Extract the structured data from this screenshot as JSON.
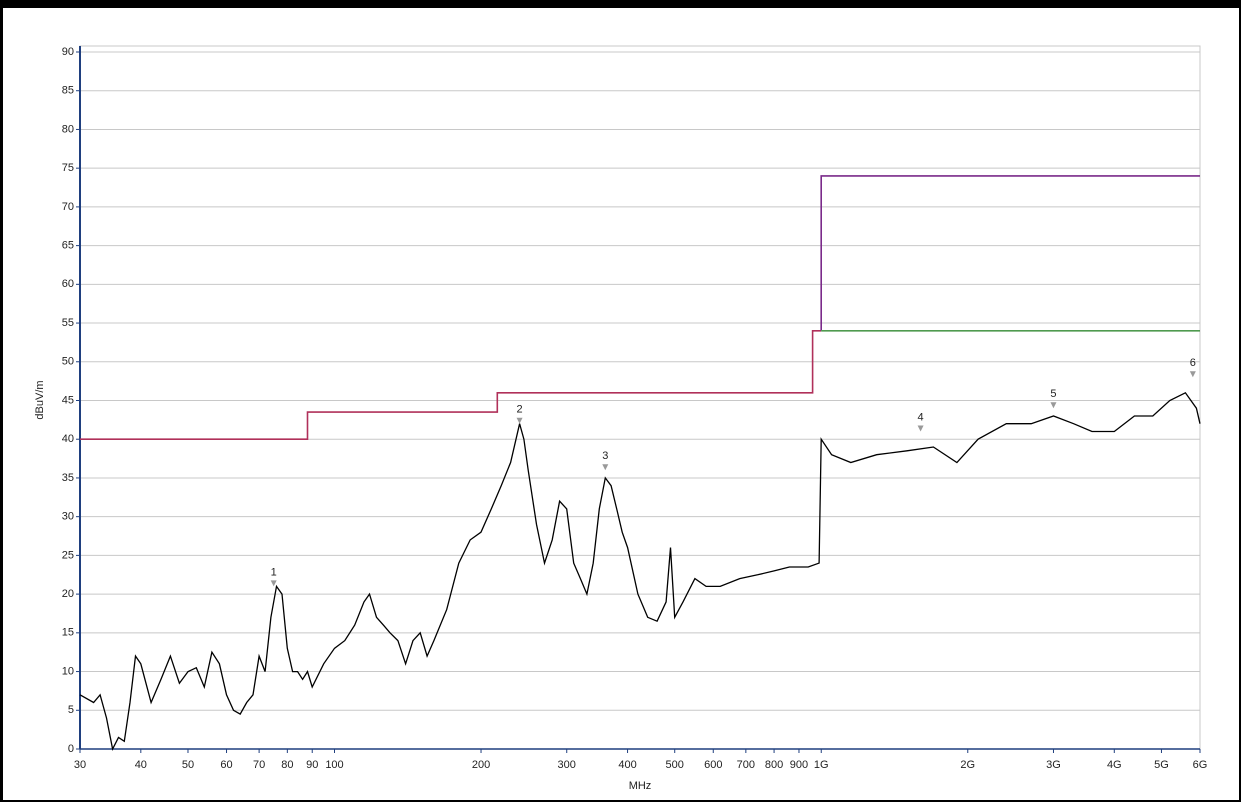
{
  "chart_data": {
    "type": "line",
    "y_label": "dBuV/m",
    "x_label": "MHz",
    "log_x": true,
    "xlim": [
      30,
      6000
    ],
    "xticks": [
      30,
      40,
      50,
      60,
      70,
      80,
      90,
      100,
      200,
      300,
      400,
      500,
      600,
      700,
      800,
      900,
      {
        "value": 1000,
        "label": "1G"
      },
      {
        "value": 2000,
        "label": "2G"
      },
      {
        "value": 3000,
        "label": "3G"
      },
      {
        "value": 4000,
        "label": "4G"
      },
      {
        "value": 5000,
        "label": "5G"
      },
      {
        "value": 6000,
        "label": "6G"
      }
    ],
    "ylim": [
      0,
      90
    ],
    "yticks": [
      0,
      5,
      10,
      15,
      20,
      25,
      30,
      35,
      40,
      45,
      50,
      55,
      60,
      65,
      70,
      75,
      80,
      85,
      90
    ],
    "grid": true,
    "series": [
      {
        "color": "#000000",
        "x": [
          30,
          32,
          33,
          34,
          35,
          36,
          37,
          38,
          39,
          40,
          42,
          44,
          46,
          48,
          50,
          52,
          54,
          56,
          58,
          60,
          62,
          64,
          66,
          68,
          70,
          72,
          74,
          76,
          78,
          80,
          82,
          84,
          86,
          88,
          90,
          95,
          100,
          105,
          110,
          115,
          118,
          122,
          126,
          130,
          135,
          140,
          145,
          150,
          155,
          160,
          170,
          180,
          190,
          200,
          210,
          220,
          230,
          240,
          245,
          250,
          260,
          270,
          280,
          290,
          300,
          310,
          320,
          330,
          340,
          350,
          360,
          370,
          380,
          390,
          400,
          420,
          440,
          460,
          480,
          490,
          500,
          520,
          550,
          580,
          620,
          680,
          740,
          800,
          860,
          940,
          990,
          1000,
          1050,
          1150,
          1300,
          1500,
          1700,
          1900,
          2100,
          2400,
          2700,
          3000,
          3300,
          3600,
          4000,
          4400,
          4800,
          5200,
          5600,
          5900,
          6000
        ],
        "values": [
          7,
          6,
          7,
          4,
          0,
          1.5,
          1,
          6,
          12,
          11,
          6,
          9,
          12,
          8.5,
          10,
          10.5,
          8,
          12.5,
          11,
          7,
          5,
          4.5,
          6,
          7,
          12,
          10,
          17,
          21,
          20,
          13,
          10,
          10,
          9,
          10,
          8,
          11,
          13,
          14,
          16,
          19,
          20,
          17,
          16,
          15,
          14,
          11,
          14,
          15,
          12,
          14,
          18,
          24,
          27,
          28,
          31,
          34,
          37,
          42,
          40,
          36,
          29,
          24,
          27,
          32,
          31,
          24,
          22,
          20,
          24,
          31,
          35,
          34,
          31,
          28,
          26,
          20,
          17,
          16.5,
          19,
          26,
          17,
          19,
          22,
          21,
          21,
          22,
          22.5,
          23,
          23.5,
          23.5,
          24,
          40,
          38,
          37,
          38,
          38.5,
          39,
          37,
          40,
          42,
          42,
          43,
          42,
          41,
          41,
          43,
          43,
          45,
          46,
          44,
          42
        ]
      },
      {
        "color": "#b0305a",
        "x": [
          30,
          88,
          88,
          216,
          216,
          960,
          960,
          1000
        ],
        "values": [
          40,
          40,
          43.5,
          43.5,
          46,
          46,
          54,
          54
        ]
      },
      {
        "color": "#7a2a8a",
        "x": [
          1000,
          1000,
          6000
        ],
        "values": [
          54,
          74,
          74
        ]
      },
      {
        "color": "#4f9a4f",
        "x": [
          1000,
          6000
        ],
        "values": [
          54,
          54
        ]
      }
    ],
    "markers": [
      {
        "label": "1",
        "x": 75,
        "y": 21
      },
      {
        "label": "2",
        "x": 240,
        "y": 42
      },
      {
        "label": "3",
        "x": 360,
        "y": 36
      },
      {
        "label": "4",
        "x": 1600,
        "y": 41
      },
      {
        "label": "5",
        "x": 3000,
        "y": 44
      },
      {
        "label": "6",
        "x": 5800,
        "y": 48
      }
    ]
  }
}
